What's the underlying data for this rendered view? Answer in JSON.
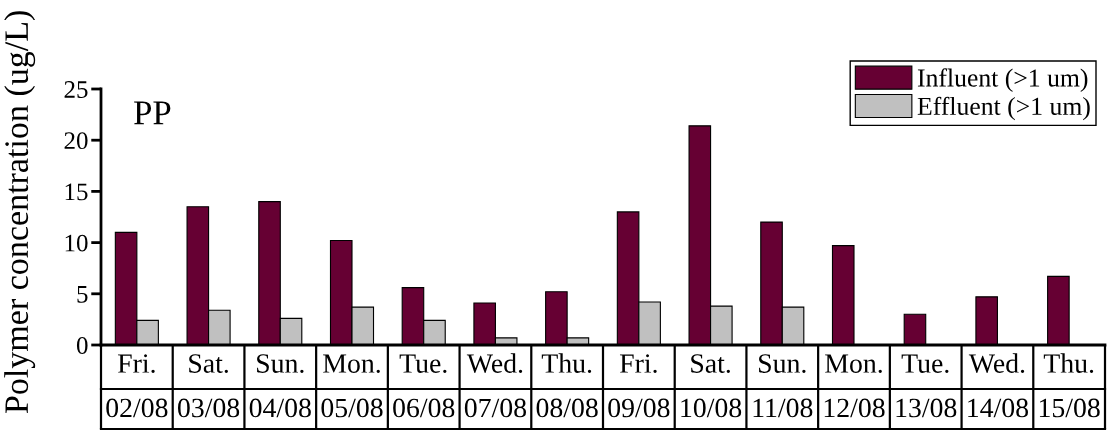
{
  "chart_data": {
    "type": "bar",
    "ylabel": "Polymer concentration (ug/L)",
    "annotations": [
      "PP"
    ],
    "categories": [
      "Fri.\n02/08",
      "Sat.\n03/08",
      "Sun.\n04/08",
      "Mon.\n05/08",
      "Tue.\n06/08",
      "Wed.\n07/08",
      "Thu.\n08/08",
      "Fri.\n09/08",
      "Sat.\n10/08",
      "Sun.\n11/08",
      "Mon.\n12/08",
      "Tue.\n13/08",
      "Wed.\n14/08",
      "Thu.\n15/08"
    ],
    "series": [
      {
        "name": "Influent (>1 um)",
        "color": "#660033",
        "values": [
          11.0,
          13.5,
          14.0,
          10.2,
          5.6,
          4.1,
          5.2,
          13.0,
          21.4,
          12.0,
          9.7,
          3.0,
          4.7,
          6.7
        ]
      },
      {
        "name": "Effluent (>1 um)",
        "color": "#c0c0c0",
        "values": [
          2.4,
          3.4,
          2.6,
          3.7,
          2.4,
          0.7,
          0.7,
          4.2,
          3.8,
          3.7,
          null,
          null,
          null,
          null
        ]
      }
    ],
    "ylim": [
      0,
      25
    ],
    "yticks": [
      0,
      5,
      10,
      15,
      20,
      25
    ],
    "legend": "top right"
  }
}
